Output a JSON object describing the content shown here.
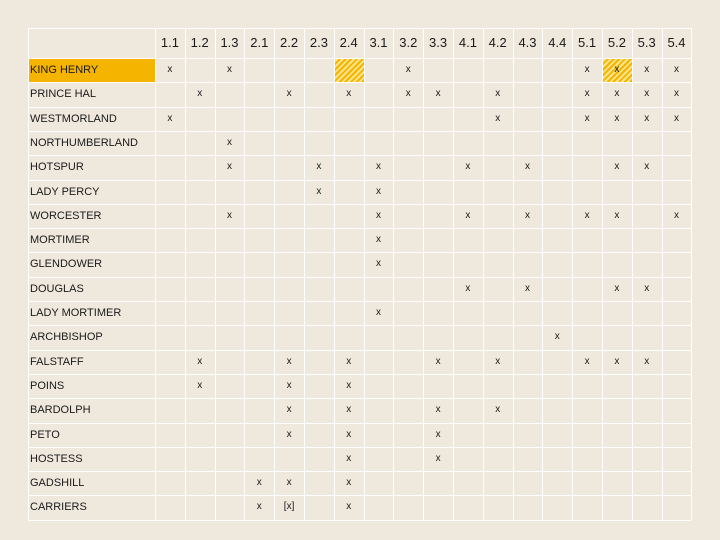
{
  "columns": [
    "1.1",
    "1.2",
    "1.3",
    "2.1",
    "2.2",
    "2.3",
    "2.4",
    "3.1",
    "3.2",
    "3.3",
    "4.1",
    "4.2",
    "4.3",
    "4.4",
    "5.1",
    "5.2",
    "5.3",
    "5.4"
  ],
  "rows": [
    {
      "name": "KING HENRY",
      "highlight": true,
      "marks": {
        "1": "x",
        "3": "x",
        "9": "x",
        "15": "x",
        "16": "x",
        "17": "x",
        "18": "x"
      },
      "hatch": [
        7,
        16
      ]
    },
    {
      "name": "PRINCE HAL",
      "marks": {
        "2": "x",
        "5": "x",
        "7": "x",
        "9": "x",
        "10": "x",
        "12": "x",
        "15": "x",
        "16": "x",
        "17": "x",
        "18": "x"
      }
    },
    {
      "name": "WESTMORLAND",
      "marks": {
        "1": "x",
        "12": "x",
        "15": "x",
        "16": "x",
        "17": "x",
        "18": "x"
      }
    },
    {
      "name": "NORTHUMBERLAND",
      "marks": {
        "3": "x"
      }
    },
    {
      "name": "HOTSPUR",
      "marks": {
        "3": "x",
        "6": "x",
        "8": "x",
        "11": "x",
        "13": "x",
        "16": "x",
        "17": "x"
      }
    },
    {
      "name": "LADY PERCY",
      "marks": {
        "6": "x",
        "8": "x"
      }
    },
    {
      "name": "WORCESTER",
      "marks": {
        "3": "x",
        "8": "x",
        "11": "x",
        "13": "x",
        "15": "x",
        "16": "x",
        "18": "x"
      }
    },
    {
      "name": "MORTIMER",
      "marks": {
        "8": "x"
      }
    },
    {
      "name": "GLENDOWER",
      "marks": {
        "8": "x"
      }
    },
    {
      "name": "DOUGLAS",
      "marks": {
        "11": "x",
        "13": "x",
        "16": "x",
        "17": "x"
      }
    },
    {
      "name": "LADY MORTIMER",
      "marks": {
        "8": "x"
      }
    },
    {
      "name": "ARCHBISHOP",
      "marks": {
        "14": "x"
      }
    },
    {
      "name": "FALSTAFF",
      "marks": {
        "2": "x",
        "5": "x",
        "7": "x",
        "10": "x",
        "12": "x",
        "15": "x",
        "16": "x",
        "17": "x"
      }
    },
    {
      "name": "POINS",
      "marks": {
        "2": "x",
        "5": "x",
        "7": "x"
      }
    },
    {
      "name": "BARDOLPH",
      "marks": {
        "5": "x",
        "7": "x",
        "10": "x",
        "12": "x"
      }
    },
    {
      "name": "PETO",
      "marks": {
        "5": "x",
        "7": "x",
        "10": "x"
      }
    },
    {
      "name": "HOSTESS",
      "marks": {
        "7": "x",
        "10": "x"
      }
    },
    {
      "name": "GADSHILL",
      "marks": {
        "4": "x",
        "5": "x",
        "7": "x"
      }
    },
    {
      "name": "CARRIERS",
      "marks": {
        "4": "x",
        "5": "[x]",
        "7": "x"
      }
    }
  ],
  "colors": {
    "background": "#efe9dd",
    "highlight": "#f5b400",
    "grid": "#ffffff"
  }
}
